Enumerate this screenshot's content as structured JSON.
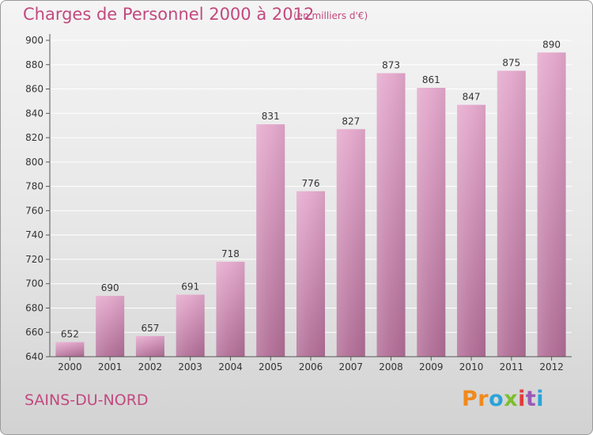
{
  "header": {
    "title": "Charges de Personnel 2000 à 2012",
    "subtitle": "(en milliers d'€)"
  },
  "footer": {
    "town": "SAINS-DU-NORD",
    "brand": "Proxiti"
  },
  "colors": {
    "title": "#c2497f",
    "bar_top": "#e4a8cc",
    "bar_bottom": "#b06c95",
    "grid": "#ffffff",
    "axis": "#555555",
    "brand_letters": [
      "#f08a1d",
      "#f08a1d",
      "#2aa3d9",
      "#7cbf2e",
      "#e23b3b",
      "#9b59b6",
      "#2aa3d9"
    ]
  },
  "chart_data": {
    "type": "bar",
    "title": "Charges de Personnel 2000 à 2012",
    "subtitle": "(en milliers d'€)",
    "categories": [
      "2000",
      "2001",
      "2002",
      "2003",
      "2004",
      "2005",
      "2006",
      "2007",
      "2008",
      "2009",
      "2010",
      "2011",
      "2012"
    ],
    "values": [
      652,
      690,
      657,
      691,
      718,
      831,
      776,
      827,
      873,
      861,
      847,
      875,
      890
    ],
    "ylim": [
      640,
      900
    ],
    "yticks": [
      640,
      660,
      680,
      700,
      720,
      740,
      760,
      780,
      800,
      820,
      840,
      860,
      880,
      900
    ],
    "grid": true,
    "legend": "none",
    "data_labels": true
  }
}
